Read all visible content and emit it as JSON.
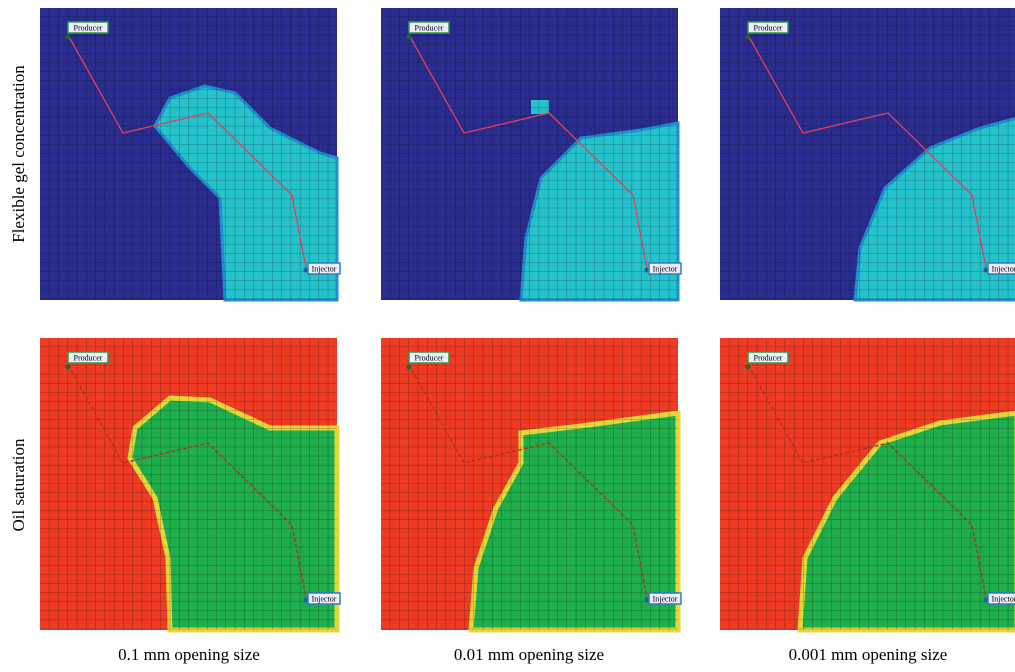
{
  "row_labels": [
    "Flexible gel concentration",
    "Oil saturation"
  ],
  "column_labels": [
    "0.1 mm opening size",
    "0.01 mm opening size",
    "0.001 mm opening size"
  ],
  "panels": [
    {
      "producer": "Producer",
      "injector": "Injector"
    },
    {
      "producer": "Producer",
      "injector": "Injector"
    },
    {
      "producer": "Producer",
      "injector": "Injector"
    },
    {
      "producer": "Producer",
      "injector": "Injector"
    },
    {
      "producer": "Producer",
      "injector": "Injector"
    },
    {
      "producer": "Producer",
      "injector": "Injector"
    }
  ]
}
